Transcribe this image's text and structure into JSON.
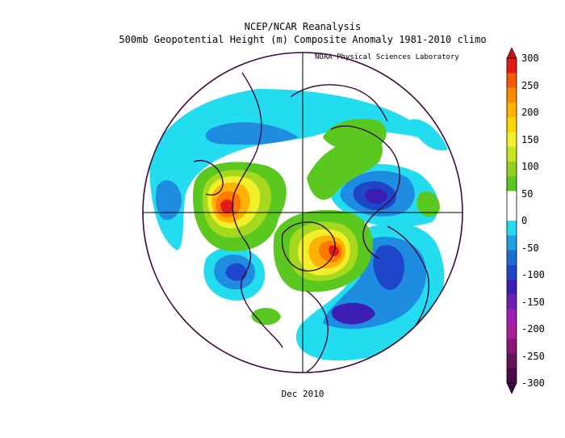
{
  "header": {
    "title": "NCEP/NCAR Reanalysis",
    "subtitle": "500mb Geopotential Height (m) Composite Anomaly 1981-2010 climo",
    "credit": "NOAA Physical Sciences Laboratory"
  },
  "footer": {
    "period": "Dec 2010"
  },
  "colorbar": {
    "labels": [
      "300",
      "250",
      "200",
      "150",
      "100",
      "50",
      "0",
      "-50",
      "-100",
      "-150",
      "-200",
      "-250",
      "-300"
    ],
    "colors": [
      "#e41a1a",
      "#f55a0a",
      "#ff8c00",
      "#ffb300",
      "#ffd500",
      "#f2ee2a",
      "#c8e61e",
      "#91d21e",
      "#5ac81e",
      "#ffffff",
      "#ffffff",
      "#23dcf0",
      "#1ea0e1",
      "#1e6ed2",
      "#1e46c8",
      "#3c1eb4",
      "#6e1eb4",
      "#a01eb4",
      "#aa1e96",
      "#8c1478",
      "#64145a",
      "#4b0a46"
    ]
  },
  "anomaly_colors": {
    "pos_50": "#5ac81e",
    "pos_100": "#a5d91e",
    "pos_150": "#f2ee2a",
    "pos_200": "#ffb300",
    "pos_250": "#ff7800",
    "pos_300": "#e41a1a",
    "neg_50": "#23dcf0",
    "neg_100": "#1e8ce1",
    "neg_150": "#1e46c8",
    "neg_200": "#3c1eb4",
    "neg_250": "#6e1eb4"
  }
}
